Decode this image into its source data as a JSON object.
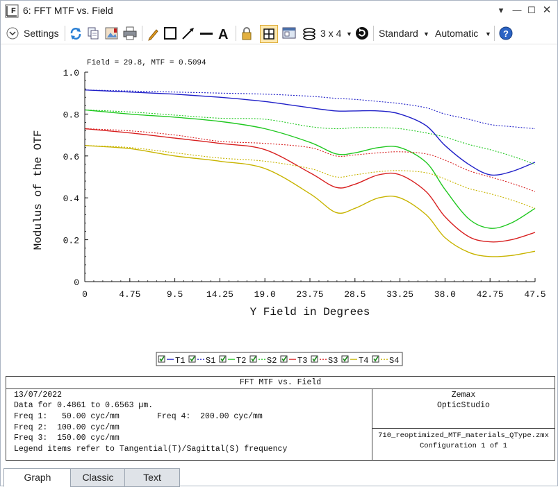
{
  "window": {
    "title": "6: FFT MTF vs. Field"
  },
  "toolbar": {
    "settings_label": "Settings",
    "layout_label": "3 x 4",
    "standard_label": "Standard",
    "automatic_label": "Automatic"
  },
  "cursor_readout": "Field = 29.8, MTF = 0.5094",
  "chart_data": {
    "type": "line",
    "xlabel": "Y Field in Degrees",
    "ylabel": "Modulus of the OTF",
    "xlim": [
      0,
      47.5
    ],
    "ylim": [
      0,
      1.0
    ],
    "x_ticks": [
      "0",
      "4.75",
      "9.5",
      "14.25",
      "19.0",
      "23.75",
      "28.5",
      "33.25",
      "38.0",
      "42.75",
      "47.5"
    ],
    "y_ticks": [
      "0",
      "0.2",
      "0.4",
      "0.6",
      "0.8",
      "1.0"
    ],
    "x": [
      0,
      4.75,
      9.5,
      14.25,
      19.0,
      23.75,
      26.5,
      28.5,
      31.0,
      33.25,
      36.0,
      38.0,
      40.5,
      42.75,
      45.0,
      47.5
    ],
    "series": [
      {
        "name": "T1",
        "color": "#2020c8",
        "dash": false,
        "values": [
          0.915,
          0.905,
          0.895,
          0.88,
          0.86,
          0.83,
          0.815,
          0.815,
          0.815,
          0.8,
          0.745,
          0.65,
          0.56,
          0.51,
          0.525,
          0.57
        ]
      },
      {
        "name": "S1",
        "color": "#2020c8",
        "dash": true,
        "values": [
          0.915,
          0.91,
          0.905,
          0.9,
          0.895,
          0.885,
          0.875,
          0.87,
          0.86,
          0.85,
          0.83,
          0.8,
          0.775,
          0.75,
          0.74,
          0.73
        ]
      },
      {
        "name": "T2",
        "color": "#20c820",
        "dash": false,
        "values": [
          0.82,
          0.8,
          0.785,
          0.765,
          0.73,
          0.665,
          0.61,
          0.615,
          0.64,
          0.64,
          0.57,
          0.44,
          0.3,
          0.255,
          0.28,
          0.35
        ]
      },
      {
        "name": "S2",
        "color": "#20c820",
        "dash": true,
        "values": [
          0.82,
          0.81,
          0.795,
          0.78,
          0.775,
          0.74,
          0.73,
          0.735,
          0.735,
          0.73,
          0.71,
          0.69,
          0.655,
          0.63,
          0.6,
          0.56
        ]
      },
      {
        "name": "T3",
        "color": "#d82020",
        "dash": false,
        "values": [
          0.73,
          0.71,
          0.685,
          0.66,
          0.63,
          0.52,
          0.45,
          0.465,
          0.51,
          0.51,
          0.43,
          0.31,
          0.215,
          0.19,
          0.2,
          0.235
        ]
      },
      {
        "name": "S3",
        "color": "#d82020",
        "dash": true,
        "values": [
          0.73,
          0.72,
          0.7,
          0.67,
          0.66,
          0.64,
          0.6,
          0.605,
          0.615,
          0.62,
          0.61,
          0.58,
          0.53,
          0.5,
          0.47,
          0.43
        ]
      },
      {
        "name": "T4",
        "color": "#c8b400",
        "dash": false,
        "values": [
          0.65,
          0.635,
          0.6,
          0.575,
          0.54,
          0.42,
          0.33,
          0.35,
          0.4,
          0.4,
          0.32,
          0.21,
          0.14,
          0.12,
          0.125,
          0.145
        ]
      },
      {
        "name": "S4",
        "color": "#c8b400",
        "dash": true,
        "values": [
          0.65,
          0.64,
          0.615,
          0.59,
          0.575,
          0.54,
          0.5,
          0.51,
          0.525,
          0.53,
          0.52,
          0.49,
          0.445,
          0.42,
          0.39,
          0.35
        ]
      }
    ],
    "legend_placement": "bottom-center"
  },
  "info": {
    "header": "FFT MTF vs. Field",
    "date": "13/07/2022",
    "data_line": "Data for 0.4861 to 0.6563 µm.",
    "freq1": "Freq 1:   50.00 cyc/mm",
    "freq4": "Freq 4:  200.00 cyc/mm",
    "freq2": "Freq 2:  100.00 cyc/mm",
    "freq3": "Freq 3:  150.00 cyc/mm",
    "legend_note": "Legend items refer to Tangential(T)/Sagittal(S) frequency",
    "company": "Zemax",
    "product": "OpticStudio",
    "file": "710_reoptimized_MTF_materials_QType.zmx",
    "config": "Configuration 1 of 1"
  },
  "tabs": [
    {
      "label": "Graph",
      "active": true
    },
    {
      "label": "Classic",
      "active": false
    },
    {
      "label": "Text",
      "active": false
    }
  ]
}
